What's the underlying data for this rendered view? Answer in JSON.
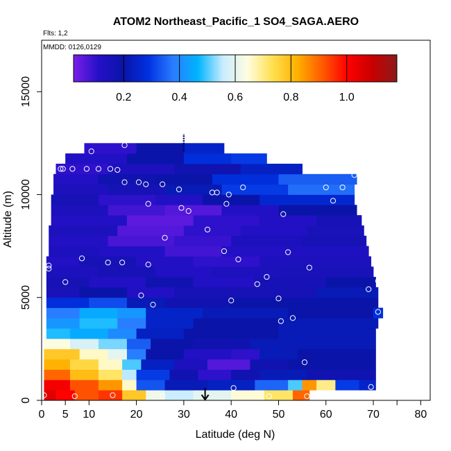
{
  "chart_data": {
    "type": "heatmap",
    "title": "ATOM2 Northeast_Pacific_1 SO4_SAGA.AERO",
    "subtitle": "Flts: 1,2",
    "annotation": "MMDD: 0126,0129",
    "xlabel": "Latitude (deg N)",
    "ylabel": "Altitude (m)",
    "xlim": [
      0,
      82
    ],
    "ylim": [
      0,
      17500
    ],
    "x_ticks": [
      0,
      5,
      10,
      20,
      30,
      40,
      50,
      60,
      70,
      80
    ],
    "x_minor_ticks": [
      75
    ],
    "y_ticks": [
      0,
      5000,
      10000,
      15000
    ],
    "colorbar": {
      "min": 0.02,
      "max": 1.18,
      "ticks": [
        0.2,
        0.4,
        0.6,
        0.8,
        1.0
      ],
      "tick_labels": [
        "0.2",
        "0.4",
        "0.6",
        "0.8",
        "1.0"
      ],
      "separators": [
        0.2,
        0.4,
        0.6,
        0.8,
        1.0
      ],
      "colors": [
        "#7a1ee8",
        "#2510c8",
        "#0a14a8",
        "#0030e0",
        "#2a7cff",
        "#00b4ff",
        "#c8ecff",
        "#fffde0",
        "#ffe050",
        "#ffb000",
        "#ff5a00",
        "#ff0000",
        "#c80000",
        "#8c1a1a"
      ]
    },
    "layers": [
      {
        "alt": 250,
        "segments": [
          [
            0.5,
            3,
            1.05
          ],
          [
            3,
            7,
            1.0
          ],
          [
            7,
            12,
            0.92
          ],
          [
            12,
            17,
            0.95
          ],
          [
            17,
            22,
            0.78
          ],
          [
            22,
            26,
            0.62
          ],
          [
            26,
            32,
            0.56
          ],
          [
            32,
            40,
            0.6
          ],
          [
            40,
            47,
            0.65
          ],
          [
            47,
            53,
            0.72
          ],
          [
            53,
            56.5,
            0.9
          ]
        ]
      },
      {
        "alt": 750,
        "segments": [
          [
            0.5,
            6,
            1.02
          ],
          [
            6,
            12,
            0.92
          ],
          [
            12,
            17,
            0.85
          ],
          [
            17,
            20,
            0.66
          ],
          [
            20,
            26,
            0.33
          ],
          [
            26,
            35,
            0.22
          ],
          [
            35,
            45,
            0.24
          ],
          [
            45,
            52,
            0.35
          ],
          [
            52,
            55,
            0.5
          ],
          [
            55,
            58,
            0.85
          ],
          [
            58,
            62,
            0.7
          ],
          [
            62,
            67,
            0.3
          ],
          [
            67,
            70.5,
            0.25
          ]
        ]
      },
      {
        "alt": 1250,
        "segments": [
          [
            0.5,
            6,
            0.9
          ],
          [
            6,
            12,
            0.8
          ],
          [
            12,
            17,
            0.72
          ],
          [
            17,
            20,
            0.55
          ],
          [
            20,
            27,
            0.3
          ],
          [
            27,
            33,
            0.18
          ],
          [
            33,
            40,
            0.1
          ],
          [
            40,
            46,
            0.18
          ],
          [
            46,
            56,
            0.22
          ],
          [
            56,
            70.5,
            0.18
          ]
        ]
      },
      {
        "alt": 1750,
        "segments": [
          [
            0.5,
            6,
            0.82
          ],
          [
            6,
            12,
            0.75
          ],
          [
            12,
            17,
            0.66
          ],
          [
            17,
            21,
            0.5
          ],
          [
            21,
            28,
            0.24
          ],
          [
            28,
            35,
            0.14
          ],
          [
            35,
            44,
            0.06
          ],
          [
            44,
            52,
            0.18
          ],
          [
            52,
            70.5,
            0.2
          ]
        ]
      },
      {
        "alt": 2250,
        "segments": [
          [
            0.5,
            8,
            0.78
          ],
          [
            8,
            14,
            0.66
          ],
          [
            14,
            18,
            0.6
          ],
          [
            18,
            22,
            0.38
          ],
          [
            22,
            30,
            0.2
          ],
          [
            30,
            40,
            0.12
          ],
          [
            40,
            46,
            0.1
          ],
          [
            46,
            54,
            0.22
          ],
          [
            54,
            70.5,
            0.2
          ]
        ]
      },
      {
        "alt": 2750,
        "segments": [
          [
            0.5,
            6,
            0.64
          ],
          [
            6,
            12,
            0.58
          ],
          [
            12,
            18,
            0.52
          ],
          [
            18,
            23,
            0.34
          ],
          [
            23,
            32,
            0.2
          ],
          [
            32,
            44,
            0.18
          ],
          [
            44,
            56,
            0.22
          ],
          [
            56,
            70.5,
            0.22
          ]
        ]
      },
      {
        "alt": 3250,
        "segments": [
          [
            1,
            6,
            0.48
          ],
          [
            6,
            14,
            0.45
          ],
          [
            14,
            20,
            0.4
          ],
          [
            20,
            30,
            0.24
          ],
          [
            30,
            50,
            0.2
          ],
          [
            50,
            70.5,
            0.22
          ]
        ]
      },
      {
        "alt": 3750,
        "segments": [
          [
            1,
            8,
            0.42
          ],
          [
            8,
            16,
            0.48
          ],
          [
            16,
            22,
            0.38
          ],
          [
            22,
            32,
            0.25
          ],
          [
            32,
            50,
            0.2
          ],
          [
            50,
            71,
            0.22
          ]
        ]
      },
      {
        "alt": 4250,
        "segments": [
          [
            1,
            8,
            0.38
          ],
          [
            8,
            16,
            0.45
          ],
          [
            16,
            22,
            0.42
          ],
          [
            22,
            34,
            0.25
          ],
          [
            34,
            52,
            0.22
          ],
          [
            52,
            70,
            0.2
          ],
          [
            70,
            72,
            0.28
          ]
        ]
      },
      {
        "alt": 4750,
        "segments": [
          [
            1,
            10,
            0.28
          ],
          [
            10,
            18,
            0.32
          ],
          [
            18,
            26,
            0.22
          ],
          [
            26,
            40,
            0.18
          ],
          [
            40,
            55,
            0.2
          ],
          [
            55,
            71,
            0.2
          ]
        ]
      },
      {
        "alt": 5250,
        "segments": [
          [
            1,
            8,
            0.15
          ],
          [
            8,
            18,
            0.2
          ],
          [
            18,
            28,
            0.12
          ],
          [
            28,
            42,
            0.16
          ],
          [
            42,
            58,
            0.16
          ],
          [
            58,
            71,
            0.22
          ]
        ]
      },
      {
        "alt": 5750,
        "segments": [
          [
            1,
            10,
            0.16
          ],
          [
            10,
            22,
            0.12
          ],
          [
            22,
            32,
            0.18
          ],
          [
            32,
            45,
            0.12
          ],
          [
            45,
            60,
            0.16
          ],
          [
            60,
            70.5,
            0.2
          ]
        ]
      },
      {
        "alt": 6250,
        "segments": [
          [
            1,
            12,
            0.14
          ],
          [
            12,
            24,
            0.16
          ],
          [
            24,
            36,
            0.12
          ],
          [
            36,
            50,
            0.14
          ],
          [
            50,
            70,
            0.15
          ]
        ]
      },
      {
        "alt": 6750,
        "segments": [
          [
            1,
            8,
            0.12
          ],
          [
            8,
            20,
            0.16
          ],
          [
            20,
            32,
            0.12
          ],
          [
            32,
            46,
            0.1
          ],
          [
            46,
            58,
            0.14
          ],
          [
            58,
            69.5,
            0.14
          ]
        ]
      },
      {
        "alt": 7250,
        "segments": [
          [
            1.5,
            12,
            0.14
          ],
          [
            12,
            26,
            0.12
          ],
          [
            26,
            38,
            0.08
          ],
          [
            38,
            52,
            0.12
          ],
          [
            52,
            69,
            0.13
          ]
        ]
      },
      {
        "alt": 7750,
        "segments": [
          [
            1.5,
            14,
            0.12
          ],
          [
            14,
            28,
            0.07
          ],
          [
            28,
            40,
            0.09
          ],
          [
            40,
            55,
            0.14
          ],
          [
            55,
            68.5,
            0.16
          ]
        ]
      },
      {
        "alt": 8250,
        "segments": [
          [
            1.5,
            16,
            0.14
          ],
          [
            16,
            30,
            0.06
          ],
          [
            30,
            42,
            0.1
          ],
          [
            42,
            56,
            0.12
          ],
          [
            56,
            68,
            0.15
          ]
        ]
      },
      {
        "alt": 8750,
        "segments": [
          [
            2,
            18,
            0.12
          ],
          [
            18,
            32,
            0.05
          ],
          [
            32,
            46,
            0.1
          ],
          [
            46,
            58,
            0.12
          ],
          [
            58,
            67.5,
            0.16
          ]
        ]
      },
      {
        "alt": 9250,
        "segments": [
          [
            2,
            14,
            0.14
          ],
          [
            14,
            26,
            0.08
          ],
          [
            26,
            38,
            0.06
          ],
          [
            38,
            50,
            0.12
          ],
          [
            50,
            66.5,
            0.2
          ]
        ]
      },
      {
        "alt": 9750,
        "segments": [
          [
            2,
            12,
            0.16
          ],
          [
            12,
            24,
            0.1
          ],
          [
            24,
            34,
            0.12
          ],
          [
            34,
            46,
            0.2
          ],
          [
            46,
            66,
            0.26
          ]
        ]
      },
      {
        "alt": 10250,
        "segments": [
          [
            2.5,
            14,
            0.14
          ],
          [
            14,
            26,
            0.16
          ],
          [
            26,
            38,
            0.22
          ],
          [
            38,
            52,
            0.3
          ],
          [
            52,
            66,
            0.36
          ]
        ]
      },
      {
        "alt": 10750,
        "segments": [
          [
            2.5,
            12,
            0.12
          ],
          [
            12,
            24,
            0.18
          ],
          [
            24,
            36,
            0.2
          ],
          [
            36,
            50,
            0.28
          ],
          [
            50,
            66.5,
            0.34
          ]
        ]
      },
      {
        "alt": 11250,
        "segments": [
          [
            3,
            14,
            0.1
          ],
          [
            14,
            28,
            0.14
          ],
          [
            28,
            42,
            0.18
          ],
          [
            42,
            55,
            0.24
          ]
        ]
      },
      {
        "alt": 11750,
        "segments": [
          [
            5,
            18,
            0.12
          ],
          [
            18,
            30,
            0.2
          ],
          [
            30,
            40,
            0.28
          ],
          [
            40,
            47.5,
            0.3
          ]
        ]
      },
      {
        "alt": 12250,
        "segments": [
          [
            9,
            20,
            0.1
          ],
          [
            20,
            30,
            0.2
          ],
          [
            30,
            38.5,
            0.25
          ]
        ]
      }
    ],
    "observations": [
      [
        0.5,
        250
      ],
      [
        7,
        200
      ],
      [
        15,
        250
      ],
      [
        25.5,
        200
      ],
      [
        48,
        200
      ],
      [
        56,
        200
      ],
      [
        40.5,
        600
      ],
      [
        69.5,
        650
      ],
      [
        55.5,
        1850
      ],
      [
        50.5,
        3850
      ],
      [
        53,
        4000
      ],
      [
        71,
        4300
      ],
      [
        23.5,
        4650
      ],
      [
        21,
        5100
      ],
      [
        40,
        4850
      ],
      [
        50,
        4950
      ],
      [
        69,
        5400
      ],
      [
        71,
        5800
      ],
      [
        5,
        5750
      ],
      [
        45.5,
        5650
      ],
      [
        47.5,
        6000
      ],
      [
        1.5,
        6400
      ],
      [
        1.5,
        6550
      ],
      [
        8.5,
        6900
      ],
      [
        14,
        6700
      ],
      [
        17,
        6700
      ],
      [
        22.5,
        6600
      ],
      [
        41.5,
        6850
      ],
      [
        38.5,
        7250
      ],
      [
        56.5,
        6450
      ],
      [
        52,
        7200
      ],
      [
        26,
        7900
      ],
      [
        35,
        8300
      ],
      [
        22.5,
        9550
      ],
      [
        29.5,
        9350
      ],
      [
        31,
        9200
      ],
      [
        39,
        9550
      ],
      [
        51,
        9050
      ],
      [
        61.5,
        9700
      ],
      [
        17.5,
        10600
      ],
      [
        22,
        10500
      ],
      [
        25.5,
        10500
      ],
      [
        29,
        10250
      ],
      [
        36,
        10100
      ],
      [
        37,
        10100
      ],
      [
        39.5,
        10000
      ],
      [
        42.5,
        10350
      ],
      [
        60,
        10350
      ],
      [
        63.5,
        10350
      ],
      [
        4,
        11250
      ],
      [
        4.5,
        11250
      ],
      [
        6.5,
        11250
      ],
      [
        9.5,
        11250
      ],
      [
        12,
        11250
      ],
      [
        14.5,
        11250
      ],
      [
        16,
        11200
      ],
      [
        20.5,
        10600
      ],
      [
        66,
        10950
      ],
      [
        10.5,
        12100
      ],
      [
        17.5,
        12400
      ]
    ],
    "flight_marker": {
      "latitude": 34.5,
      "top": 600,
      "bottom": 0
    },
    "dashed_line": {
      "latitude": 30,
      "from": 12100,
      "to": 12950
    }
  }
}
